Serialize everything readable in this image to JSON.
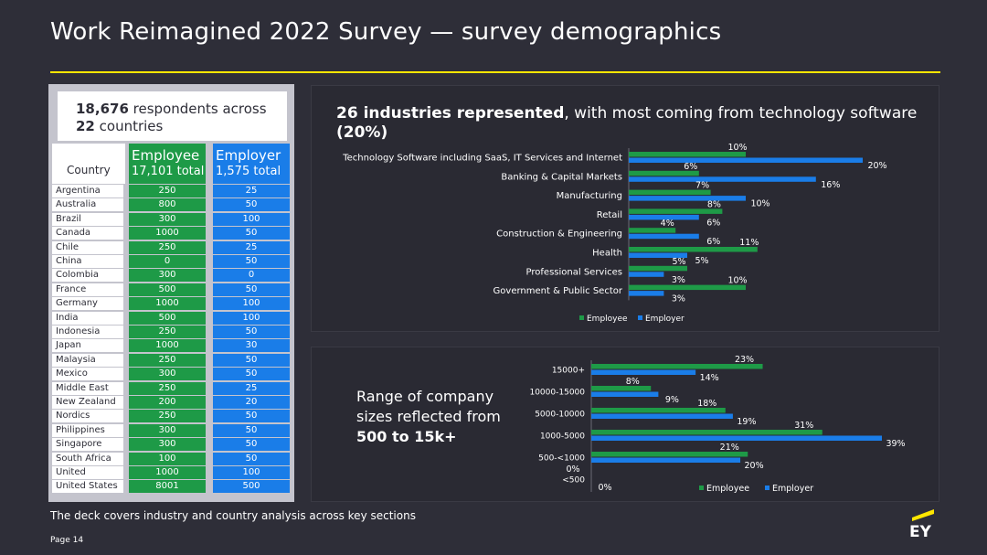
{
  "page": {
    "title": "Work Reimagined 2022 Survey — survey demographics",
    "footnote": "The deck covers industry and country analysis across key sections",
    "page_number": "Page 14",
    "accent_color": "#ffe600",
    "background_color": "#2e2e38"
  },
  "respondents": {
    "count": "18,676",
    "text1": "respondents across",
    "countries": "22",
    "text2": "countries"
  },
  "table": {
    "headers": {
      "country": "Country",
      "employee": "Employee",
      "employee_total": "17,101 total",
      "employer": "Employer",
      "employer_total": "1,575 total"
    },
    "rows": [
      {
        "country": "Argentina",
        "employee": "250",
        "employer": "25"
      },
      {
        "country": "Australia",
        "employee": "800",
        "employer": "50"
      },
      {
        "country": "Brazil",
        "employee": "300",
        "employer": "100"
      },
      {
        "country": "Canada",
        "employee": "1000",
        "employer": "50"
      },
      {
        "country": "Chile",
        "employee": "250",
        "employer": "25"
      },
      {
        "country": "China",
        "employee": "0",
        "employer": "50"
      },
      {
        "country": "Colombia",
        "employee": "300",
        "employer": "0"
      },
      {
        "country": "France",
        "employee": "500",
        "employer": "50"
      },
      {
        "country": "Germany",
        "employee": "1000",
        "employer": "100"
      },
      {
        "country": "India",
        "employee": "500",
        "employer": "100"
      },
      {
        "country": "Indonesia",
        "employee": "250",
        "employer": "50"
      },
      {
        "country": "Japan",
        "employee": "1000",
        "employer": "30"
      },
      {
        "country": "Malaysia",
        "employee": "250",
        "employer": "50"
      },
      {
        "country": "Mexico",
        "employee": "300",
        "employer": "50"
      },
      {
        "country": "Middle East",
        "employee": "250",
        "employer": "25"
      },
      {
        "country": "New Zealand",
        "employee": "200",
        "employer": "20"
      },
      {
        "country": "Nordics",
        "employee": "250",
        "employer": "50"
      },
      {
        "country": "Philippines",
        "employee": "300",
        "employer": "50"
      },
      {
        "country": "Singapore",
        "employee": "300",
        "employer": "50"
      },
      {
        "country": "South Africa",
        "employee": "100",
        "employer": "50"
      },
      {
        "country": "United Kingdom",
        "employee": "1000",
        "employer": "100"
      },
      {
        "country": "United States",
        "employee": "8001",
        "employer": "500"
      }
    ]
  },
  "industries_heading": {
    "bold": "26 industries represented",
    "rest": ", with most coming from technology software",
    "bold2": "(20%)"
  },
  "size_heading": {
    "line1": "Range of company",
    "line2": "sizes reflected from",
    "bold": "500 to 15k+"
  },
  "logo_text": "EY",
  "chart_data": [
    {
      "type": "bar",
      "orientation": "horizontal",
      "categories": [
        "Technology Software including SaaS, IT Services and Internet",
        "Banking & Capital Markets",
        "Manufacturing",
        "Retail",
        "Construction & Engineering",
        "Health",
        "Professional Services",
        "Government & Public Sector"
      ],
      "series": [
        {
          "name": "Employee",
          "color": "#1e9a47",
          "values": [
            10,
            6,
            7,
            8,
            4,
            11,
            5,
            10
          ]
        },
        {
          "name": "Employer",
          "color": "#1a7de8",
          "values": [
            20,
            16,
            10,
            6,
            6,
            5,
            3,
            3
          ]
        }
      ],
      "value_labels": {
        "Employee": [
          "10%",
          "6%",
          "7%",
          "8%",
          "4%",
          "11%",
          "5%",
          "10%"
        ],
        "Employer": [
          "20%",
          "16%",
          "10%",
          "6%",
          "6%",
          "5%",
          "3%",
          "3%"
        ]
      },
      "xlim": [
        0,
        20
      ],
      "legend": "bottom"
    },
    {
      "type": "bar",
      "orientation": "horizontal",
      "categories": [
        "15000+",
        "10000-15000",
        "5000-10000",
        "1000-5000",
        "500-<1000",
        "<500"
      ],
      "series": [
        {
          "name": "Employee",
          "color": "#1e9a47",
          "values": [
            23,
            8,
            18,
            31,
            21,
            0
          ]
        },
        {
          "name": "Employer",
          "color": "#1a7de8",
          "values": [
            14,
            9,
            19,
            39,
            20,
            0
          ]
        }
      ],
      "value_labels": {
        "Employee": [
          "23%",
          "8%",
          "18%",
          "31%",
          "21%",
          "0%"
        ],
        "Employer": [
          "14%",
          "9%",
          "19%",
          "39%",
          "20%",
          "0%"
        ]
      },
      "xlim": [
        0,
        39
      ],
      "legend": "bottom"
    }
  ]
}
